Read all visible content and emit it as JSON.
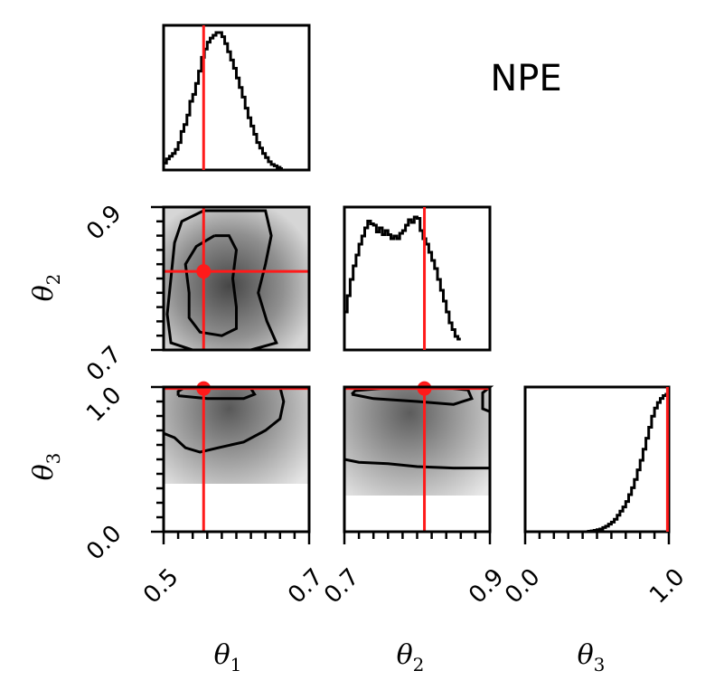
{
  "chart_data": {
    "type": "corner",
    "title": "NPE",
    "true_values": {
      "theta1": 0.555,
      "theta2": 0.81,
      "theta3": 0.99
    },
    "axes": {
      "theta1": {
        "label": "θ",
        "label_sub": "1",
        "range": [
          0.5,
          0.7
        ],
        "ticks": [
          "0.5",
          "0.7"
        ]
      },
      "theta2": {
        "label": "θ",
        "label_sub": "2",
        "range": [
          0.7,
          0.9
        ],
        "ticks": [
          "0.7",
          "0.9"
        ]
      },
      "theta3": {
        "label": "θ",
        "label_sub": "3",
        "range": [
          0.0,
          1.0
        ],
        "ticks": [
          "0.0",
          "1.0"
        ]
      }
    },
    "marginals": {
      "theta1": {
        "bin_edges_start": 0.5,
        "bin_width": 0.004,
        "density": [
          0.05,
          0.08,
          0.1,
          0.12,
          0.15,
          0.2,
          0.28,
          0.33,
          0.4,
          0.5,
          0.55,
          0.63,
          0.72,
          0.82,
          0.88,
          0.93,
          0.96,
          0.98,
          1.0,
          1.0,
          0.97,
          0.92,
          0.86,
          0.8,
          0.74,
          0.67,
          0.6,
          0.53,
          0.45,
          0.38,
          0.32,
          0.26,
          0.2,
          0.16,
          0.12,
          0.09,
          0.06,
          0.04,
          0.03,
          0.02,
          0.01
        ]
      },
      "theta2": {
        "bin_edges_start": 0.7,
        "bin_width": 0.004,
        "density": [
          0.28,
          0.4,
          0.52,
          0.62,
          0.7,
          0.78,
          0.84,
          0.9,
          0.95,
          0.93,
          0.92,
          0.87,
          0.9,
          0.85,
          0.88,
          0.85,
          0.82,
          0.84,
          0.82,
          0.86,
          0.88,
          0.92,
          0.96,
          0.94,
          0.98,
          0.97,
          0.88,
          0.82,
          0.78,
          0.72,
          0.66,
          0.6,
          0.52,
          0.44,
          0.36,
          0.28,
          0.2,
          0.15,
          0.1,
          0.08
        ]
      },
      "theta3": {
        "bin_edges_start": 0.0,
        "bin_width": 0.02,
        "density": [
          0,
          0,
          0,
          0,
          0,
          0,
          0,
          0,
          0,
          0,
          0,
          0,
          0,
          0,
          0,
          0,
          0,
          0,
          0,
          0,
          0,
          0,
          0.003,
          0.006,
          0.01,
          0.015,
          0.02,
          0.03,
          0.04,
          0.055,
          0.07,
          0.09,
          0.12,
          0.15,
          0.18,
          0.22,
          0.27,
          0.32,
          0.38,
          0.45,
          0.52,
          0.6,
          0.68,
          0.76,
          0.84,
          0.9,
          0.94,
          0.97,
          0.99,
          1.0
        ]
      }
    },
    "joints": {
      "theta2_vs_theta1": {
        "contours": [
          [
            [
              0.555,
              0.895
            ],
            [
              0.6,
              0.895
            ],
            [
              0.64,
              0.895
            ],
            [
              0.648,
              0.86
            ],
            [
              0.64,
              0.82
            ],
            [
              0.63,
              0.78
            ],
            [
              0.642,
              0.74
            ],
            [
              0.655,
              0.71
            ],
            [
              0.62,
              0.7
            ],
            [
              0.58,
              0.7
            ],
            [
              0.54,
              0.7
            ],
            [
              0.51,
              0.71
            ],
            [
              0.505,
              0.75
            ],
            [
              0.51,
              0.8
            ],
            [
              0.515,
              0.85
            ],
            [
              0.525,
              0.88
            ],
            [
              0.555,
              0.895
            ]
          ],
          [
            [
              0.57,
              0.86
            ],
            [
              0.59,
              0.86
            ],
            [
              0.6,
              0.84
            ],
            [
              0.595,
              0.8
            ],
            [
              0.6,
              0.76
            ],
            [
              0.6,
              0.73
            ],
            [
              0.58,
              0.72
            ],
            [
              0.55,
              0.725
            ],
            [
              0.535,
              0.745
            ],
            [
              0.535,
              0.78
            ],
            [
              0.53,
              0.82
            ],
            [
              0.545,
              0.845
            ],
            [
              0.57,
              0.86
            ]
          ]
        ]
      },
      "theta3_vs_theta1": {
        "contours": [
          [
            [
              0.5,
              1.0
            ],
            [
              0.6,
              1.0
            ],
            [
              0.66,
              1.0
            ],
            [
              0.665,
              0.9
            ],
            [
              0.66,
              0.78
            ],
            [
              0.64,
              0.7
            ],
            [
              0.61,
              0.62
            ],
            [
              0.575,
              0.58
            ],
            [
              0.55,
              0.55
            ],
            [
              0.53,
              0.58
            ],
            [
              0.515,
              0.65
            ],
            [
              0.5,
              0.68
            ]
          ],
          [
            [
              0.52,
              0.94
            ],
            [
              0.56,
              0.92
            ],
            [
              0.61,
              0.92
            ],
            [
              0.625,
              0.95
            ],
            [
              0.62,
              0.99
            ],
            [
              0.6,
              1.0
            ],
            [
              0.57,
              1.0
            ],
            [
              0.53,
              1.0
            ],
            [
              0.52,
              0.97
            ],
            [
              0.52,
              0.94
            ]
          ]
        ]
      },
      "theta3_vs_theta2": {
        "contours": [
          [
            [
              0.7,
              1.0
            ],
            [
              0.8,
              1.0
            ],
            [
              0.9,
              1.0
            ],
            [
              0.89,
              0.96
            ],
            [
              0.89,
              0.85
            ],
            [
              0.9,
              0.83
            ],
            [
              0.9,
              0.44
            ],
            [
              0.85,
              0.44
            ],
            [
              0.8,
              0.45
            ],
            [
              0.76,
              0.47
            ],
            [
              0.72,
              0.48
            ],
            [
              0.7,
              0.5
            ]
          ],
          [
            [
              0.71,
              0.95
            ],
            [
              0.74,
              0.92
            ],
            [
              0.8,
              0.9
            ],
            [
              0.85,
              0.88
            ],
            [
              0.875,
              0.92
            ],
            [
              0.87,
              0.98
            ],
            [
              0.84,
              0.995
            ],
            [
              0.8,
              0.995
            ],
            [
              0.75,
              0.99
            ],
            [
              0.715,
              0.975
            ],
            [
              0.71,
              0.95
            ]
          ]
        ]
      }
    },
    "colors": {
      "truth": "#ff1a1a",
      "contour": "#000000",
      "density_dark": "#3c3c3c",
      "density_light": "#d4d4d4"
    }
  }
}
